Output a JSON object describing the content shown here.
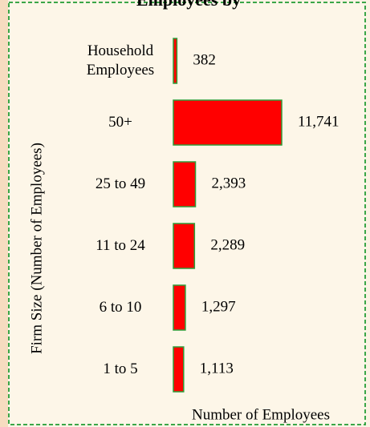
{
  "chart_data": {
    "type": "hbar",
    "title": "Employees by",
    "categories": [
      "Household Employees",
      "50+",
      "25 to 49",
      "11 to 24",
      "6 to 10",
      "1 to 5"
    ],
    "values": [
      382,
      11741,
      2393,
      2289,
      1297,
      1113
    ],
    "value_labels": [
      "382",
      "11,741",
      "2,393",
      "2,289",
      "1,297",
      "1,113"
    ],
    "color": "#ff0000",
    "edge_color": "#2e9e3a",
    "xlim": [
      0,
      11741
    ],
    "xlabel": "Number of Employees",
    "ylabel": "Firm Size (Number of Employees)"
  }
}
